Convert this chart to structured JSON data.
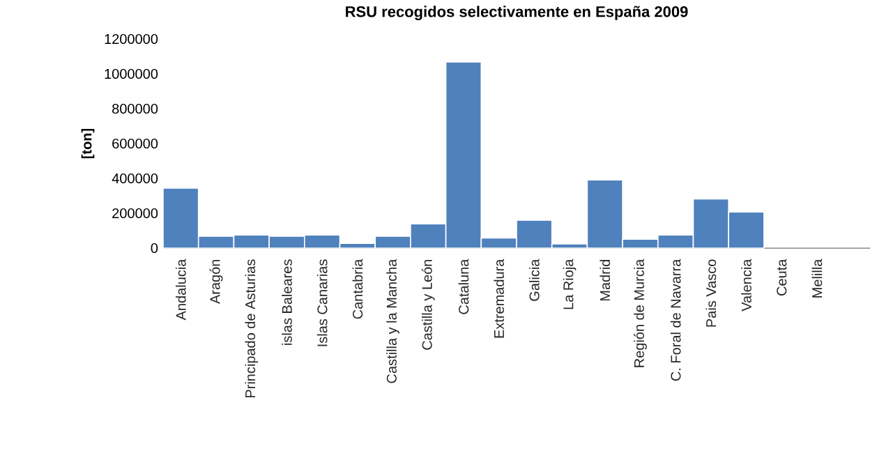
{
  "chart_data": {
    "type": "bar",
    "title": "RSU recogidos selectivamente en España 2009",
    "ylabel": "[ton]",
    "categories": [
      "Andalucia",
      "Aragón",
      "Principado de Asturias",
      "islas Baleares",
      "Islas Canarias",
      "Cantabria",
      "Castilla y la Mancha",
      "Castilla y León",
      "Cataluna",
      "Extremadura",
      "Galicia",
      "La Rioja",
      "Madrid",
      "Región de Murcia",
      "C. Foral de Navarra",
      "Pais Vasco",
      "Valencia",
      "Ceuta",
      "Melilla"
    ],
    "values": [
      344000,
      68000,
      75000,
      68000,
      75000,
      27000,
      68000,
      139000,
      1068000,
      58000,
      160000,
      24000,
      391000,
      51000,
      75000,
      282000,
      207000,
      null,
      null
    ],
    "color": "#4f81bd",
    "ylim": [
      0,
      1200000
    ],
    "yticks": [
      0,
      200000,
      400000,
      600000,
      800000,
      1000000,
      1200000
    ]
  }
}
